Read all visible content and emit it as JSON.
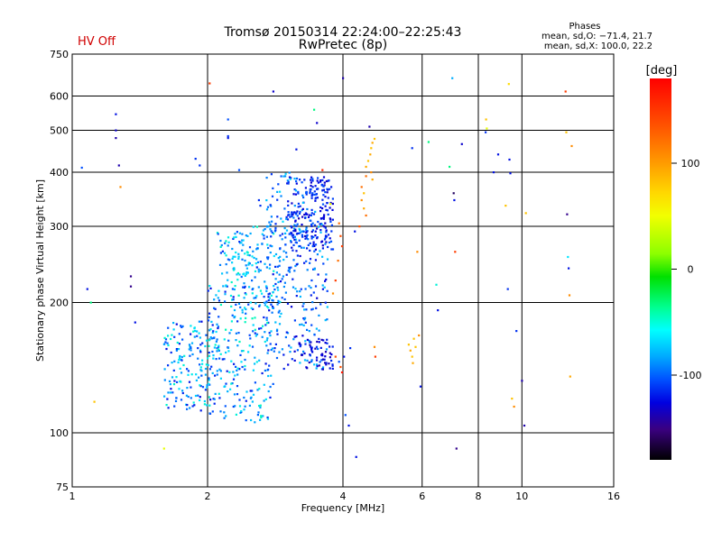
{
  "chart_data": {
    "type": "scatter",
    "status_label": "HV Off",
    "status_color": "#d00000",
    "title_line1": "Tromsø 20150314 22:24:00–22:25:43",
    "title_line2": "RwPretec (8p)",
    "stats": {
      "heading": "Phases",
      "line_o": "mean, sd,O: −71.4, 21.7",
      "line_x": "mean, sd,X: 100.0, 22.2"
    },
    "xlabel": "Frequency [MHz]",
    "ylabel": "Stationary phase Virtual Height [km]",
    "x_scale": "log",
    "y_scale": "log",
    "xlim": [
      1,
      16
    ],
    "ylim": [
      75,
      750
    ],
    "x_ticks": [
      1,
      2,
      4,
      6,
      8,
      10,
      16
    ],
    "y_ticks": [
      75,
      100,
      200,
      300,
      400,
      500,
      600,
      750
    ],
    "grid": true,
    "colorbar": {
      "label": "[deg]",
      "range": [
        -180,
        180
      ],
      "ticks": [
        100,
        0,
        -100
      ]
    },
    "point_size_note": "dots",
    "points": [
      [
        1.05,
        410,
        -100
      ],
      [
        1.08,
        215,
        -120
      ],
      [
        1.1,
        200,
        -20
      ],
      [
        1.12,
        118,
        100
      ],
      [
        1.25,
        545,
        -120
      ],
      [
        1.25,
        500,
        -130
      ],
      [
        1.25,
        480,
        -140
      ],
      [
        1.27,
        415,
        -140
      ],
      [
        1.28,
        370,
        120
      ],
      [
        1.35,
        230,
        -150
      ],
      [
        1.35,
        218,
        -150
      ],
      [
        1.38,
        180,
        -120
      ],
      [
        1.6,
        92,
        60
      ],
      [
        1.88,
        430,
        -110
      ],
      [
        1.92,
        415,
        -110
      ],
      [
        2.02,
        642,
        150
      ],
      [
        2.22,
        530,
        -100
      ],
      [
        2.22,
        485,
        -110
      ],
      [
        2.22,
        480,
        -120
      ],
      [
        2.35,
        405,
        -100
      ],
      [
        2.6,
        345,
        -110
      ],
      [
        2.62,
        335,
        -110
      ],
      [
        2.8,
        615,
        -130
      ],
      [
        3.15,
        452,
        -120
      ],
      [
        3.45,
        558,
        -20
      ],
      [
        3.5,
        520,
        -130
      ],
      [
        3.6,
        405,
        160
      ],
      [
        3.62,
        372,
        -100
      ],
      [
        3.65,
        360,
        -100
      ],
      [
        3.75,
        338,
        60
      ],
      [
        3.8,
        210,
        120
      ],
      [
        3.85,
        150,
        140
      ],
      [
        3.92,
        146,
        -100
      ],
      [
        3.95,
        142,
        140
      ],
      [
        3.98,
        138,
        170
      ],
      [
        4.0,
        660,
        -140
      ],
      [
        4.02,
        150,
        -120
      ],
      [
        4.05,
        110,
        -100
      ],
      [
        4.12,
        104,
        -120
      ],
      [
        4.15,
        157,
        -110
      ],
      [
        4.25,
        292,
        -120
      ],
      [
        4.28,
        88,
        -120
      ],
      [
        4.4,
        370,
        130
      ],
      [
        4.45,
        358,
        100
      ],
      [
        4.5,
        392,
        130
      ],
      [
        4.58,
        510,
        -140
      ],
      [
        5.7,
        455,
        -110
      ],
      [
        5.85,
        262,
        120
      ],
      [
        5.9,
        168,
        120
      ],
      [
        5.95,
        128,
        -120
      ],
      [
        6.2,
        470,
        -20
      ],
      [
        6.45,
        220,
        -40
      ],
      [
        6.5,
        192,
        -120
      ],
      [
        6.9,
        412,
        -20
      ],
      [
        7.0,
        660,
        -70
      ],
      [
        7.05,
        358,
        -160
      ],
      [
        7.07,
        345,
        -120
      ],
      [
        7.1,
        262,
        150
      ],
      [
        7.15,
        92,
        -150
      ],
      [
        7.35,
        465,
        -130
      ],
      [
        8.3,
        495,
        -110
      ],
      [
        8.32,
        530,
        100
      ],
      [
        8.35,
        505,
        60
      ],
      [
        8.65,
        400,
        -120
      ],
      [
        8.85,
        440,
        -120
      ],
      [
        9.2,
        335,
        100
      ],
      [
        9.3,
        215,
        -110
      ],
      [
        9.35,
        640,
        90
      ],
      [
        9.38,
        428,
        -120
      ],
      [
        9.42,
        398,
        -120
      ],
      [
        9.5,
        120,
        100
      ],
      [
        9.6,
        115,
        120
      ],
      [
        9.72,
        172,
        -110
      ],
      [
        10.0,
        132,
        -140
      ],
      [
        10.12,
        104,
        -140
      ],
      [
        10.2,
        322,
        100
      ],
      [
        12.5,
        615,
        150
      ],
      [
        12.55,
        495,
        100
      ],
      [
        12.6,
        320,
        -150
      ],
      [
        12.65,
        255,
        -50
      ],
      [
        12.7,
        240,
        -120
      ],
      [
        12.75,
        208,
        120
      ],
      [
        12.8,
        135,
        110
      ],
      [
        12.9,
        460,
        120
      ],
      [
        4.5,
        412,
        110
      ],
      [
        4.55,
        425,
        100
      ],
      [
        4.6,
        440,
        110
      ],
      [
        4.62,
        455,
        100
      ],
      [
        4.65,
        468,
        110
      ],
      [
        4.7,
        478,
        100
      ],
      [
        4.62,
        400,
        120
      ],
      [
        4.65,
        385,
        110
      ],
      [
        4.4,
        345,
        120
      ],
      [
        4.45,
        330,
        110
      ],
      [
        4.5,
        318,
        130
      ],
      [
        4.35,
        300,
        140
      ],
      [
        4.7,
        158,
        120
      ],
      [
        4.72,
        150,
        150
      ],
      [
        5.6,
        160,
        100
      ],
      [
        5.65,
        155,
        110
      ],
      [
        5.7,
        150,
        100
      ],
      [
        5.75,
        165,
        100
      ],
      [
        5.8,
        158,
        100
      ],
      [
        5.72,
        145,
        110
      ],
      [
        3.92,
        305,
        130
      ],
      [
        3.95,
        285,
        140
      ],
      [
        3.98,
        270,
        150
      ],
      [
        3.9,
        250,
        130
      ],
      [
        3.85,
        225,
        150
      ]
    ],
    "clusters": [
      {
        "fmin": 1.6,
        "fmax": 2.1,
        "hmin": 112,
        "hmax": 182,
        "phase_min": -125,
        "phase_max": -35,
        "n": 170
      },
      {
        "fmin": 2.0,
        "fmax": 2.8,
        "hmin": 105,
        "hmax": 220,
        "phase_min": -120,
        "phase_max": -30,
        "n": 240
      },
      {
        "fmin": 2.1,
        "fmax": 2.9,
        "hmin": 180,
        "hmax": 300,
        "phase_min": -115,
        "phase_max": -30,
        "n": 120
      },
      {
        "fmin": 2.7,
        "fmax": 3.7,
        "hmin": 140,
        "hmax": 330,
        "phase_min": -130,
        "phase_max": -60,
        "n": 260
      },
      {
        "fmin": 3.0,
        "fmax": 3.8,
        "hmin": 260,
        "hmax": 390,
        "phase_min": -135,
        "phase_max": -95,
        "n": 200
      },
      {
        "fmin": 3.2,
        "fmax": 3.8,
        "hmin": 140,
        "hmax": 165,
        "phase_min": -140,
        "phase_max": -110,
        "n": 50
      },
      {
        "fmin": 2.7,
        "fmax": 3.3,
        "hmin": 280,
        "hmax": 400,
        "phase_min": -110,
        "phase_max": -50,
        "n": 40
      },
      {
        "fmin": 2.2,
        "fmax": 2.6,
        "hmin": 225,
        "hmax": 290,
        "phase_min": -90,
        "phase_max": -40,
        "n": 40
      }
    ]
  }
}
